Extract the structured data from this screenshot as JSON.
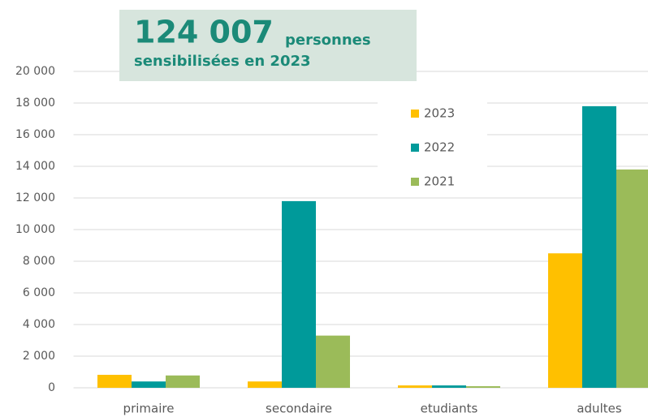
{
  "chart_data": {
    "type": "bar",
    "headline": {
      "number": "124 007",
      "unit": "personnes",
      "subtitle": "sensibilisées en 2023"
    },
    "categories": [
      "primaire",
      "secondaire",
      "etudiants",
      "adultes"
    ],
    "series": [
      {
        "name": "2023",
        "color": "#ffc000",
        "values": [
          820,
          400,
          150,
          8500
        ]
      },
      {
        "name": "2022",
        "color": "#009a9a",
        "values": [
          400,
          11800,
          150,
          17800
        ]
      },
      {
        "name": "2021",
        "color": "#9bbb59",
        "values": [
          780,
          3300,
          100,
          13800
        ]
      }
    ],
    "ylim": [
      0,
      20000
    ],
    "yticks": [
      0,
      {
        "value": 2000,
        "label": "2 000"
      },
      {
        "value": 4000,
        "label": "4 000"
      },
      {
        "value": 6000,
        "label": "6 000"
      },
      {
        "value": 8000,
        "label": "8 000"
      },
      {
        "value": 10000,
        "label": "10 000"
      },
      {
        "value": 12000,
        "label": "12 000"
      },
      {
        "value": 14000,
        "label": "14 000"
      },
      {
        "value": 16000,
        "label": "16 000"
      },
      {
        "value": 18000,
        "label": "18 000"
      },
      {
        "value": 20000,
        "label": "20 000"
      }
    ],
    "grid": true
  }
}
